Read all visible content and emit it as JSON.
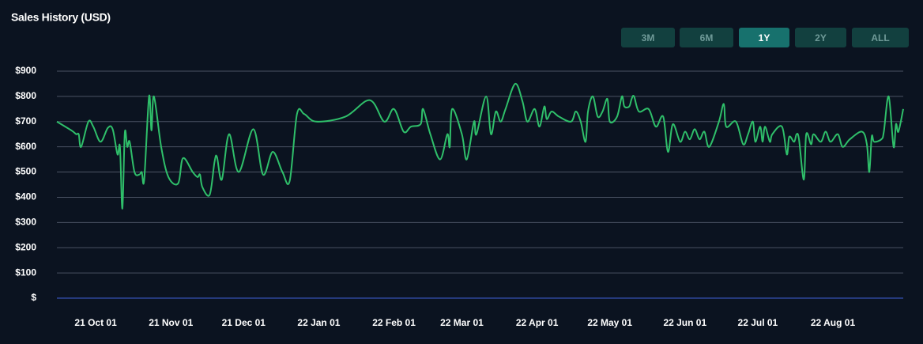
{
  "chart_data": {
    "type": "line",
    "title": "Sales History (USD)",
    "range_buttons": [
      "3M",
      "6M",
      "1Y",
      "2Y",
      "ALL"
    ],
    "selected_range": "1Y",
    "x": [
      "2021-09-15",
      "2021-09-21",
      "2021-09-23",
      "2021-09-24",
      "2021-09-25",
      "2021-09-28",
      "2021-09-30",
      "2021-10-03",
      "2021-10-06",
      "2021-10-08",
      "2021-10-10",
      "2021-10-11",
      "2021-10-12",
      "2021-10-13",
      "2021-10-14",
      "2021-10-15",
      "2021-10-17",
      "2021-10-19",
      "2021-10-20",
      "2021-10-21",
      "2021-10-23",
      "2021-10-24",
      "2021-10-25",
      "2021-10-28",
      "2021-10-31",
      "2021-11-04",
      "2021-11-06",
      "2021-11-10",
      "2021-11-12",
      "2021-11-13",
      "2021-11-14",
      "2021-11-17",
      "2021-11-19",
      "2021-11-20",
      "2021-11-22",
      "2021-11-25",
      "2021-11-29",
      "2021-12-05",
      "2021-12-09",
      "2021-12-13",
      "2021-12-17",
      "2021-12-20",
      "2021-12-23",
      "2021-12-26",
      "2021-12-31",
      "2022-01-12",
      "2022-01-22",
      "2022-01-28",
      "2022-02-01",
      "2022-02-05",
      "2022-02-08",
      "2022-02-12",
      "2022-02-13",
      "2022-02-16",
      "2022-02-20",
      "2022-02-23",
      "2022-02-24",
      "2022-02-25",
      "2022-03-01",
      "2022-03-03",
      "2022-03-06",
      "2022-03-07",
      "2022-03-11",
      "2022-03-13",
      "2022-03-15",
      "2022-03-17",
      "2022-03-19",
      "2022-03-23",
      "2022-03-26",
      "2022-03-28",
      "2022-03-31",
      "2022-04-02",
      "2022-04-04",
      "2022-04-05",
      "2022-04-07",
      "2022-04-10",
      "2022-04-15",
      "2022-04-17",
      "2022-04-19",
      "2022-04-21",
      "2022-04-22",
      "2022-04-24",
      "2022-04-26",
      "2022-04-28",
      "2022-04-30",
      "2022-05-01",
      "2022-05-04",
      "2022-05-06",
      "2022-05-07",
      "2022-05-09",
      "2022-05-10",
      "2022-05-11",
      "2022-05-13",
      "2022-05-17",
      "2022-05-20",
      "2022-05-23",
      "2022-05-25",
      "2022-05-27",
      "2022-05-30",
      "2022-06-01",
      "2022-06-03",
      "2022-06-05",
      "2022-06-07",
      "2022-06-09",
      "2022-06-11",
      "2022-06-15",
      "2022-06-17",
      "2022-06-18",
      "2022-06-22",
      "2022-06-25",
      "2022-06-27",
      "2022-06-29",
      "2022-06-30",
      "2022-07-02",
      "2022-07-03",
      "2022-07-04",
      "2022-07-06",
      "2022-07-07",
      "2022-07-11",
      "2022-07-13",
      "2022-07-14",
      "2022-07-16",
      "2022-07-17",
      "2022-07-18",
      "2022-07-20",
      "2022-07-21",
      "2022-07-23",
      "2022-07-24",
      "2022-07-27",
      "2022-07-29",
      "2022-07-31",
      "2022-08-03",
      "2022-08-05",
      "2022-08-08",
      "2022-08-13",
      "2022-08-15",
      "2022-08-16",
      "2022-08-17",
      "2022-08-18",
      "2022-08-21",
      "2022-08-22",
      "2022-08-24",
      "2022-08-26",
      "2022-08-27",
      "2022-08-28",
      "2022-08-30"
    ],
    "series": [
      {
        "name": "Sales",
        "color": "#2fbf6a",
        "values": [
          700,
          665,
          650,
          650,
          600,
          700,
          680,
          620,
          675,
          670,
          570,
          600,
          355,
          655,
          600,
          620,
          500,
          490,
          500,
          470,
          800,
          665,
          800,
          600,
          480,
          455,
          555,
          500,
          480,
          490,
          440,
          410,
          540,
          560,
          470,
          650,
          500,
          670,
          490,
          580,
          500,
          465,
          730,
          730,
          700,
          720,
          785,
          700,
          750,
          660,
          680,
          690,
          750,
          650,
          550,
          650,
          600,
          750,
          650,
          550,
          700,
          650,
          800,
          650,
          740,
          700,
          750,
          850,
          780,
          700,
          750,
          680,
          760,
          710,
          740,
          720,
          700,
          740,
          700,
          620,
          740,
          800,
          720,
          740,
          790,
          700,
          720,
          800,
          760,
          760,
          790,
          800,
          740,
          750,
          680,
          720,
          580,
          690,
          620,
          660,
          630,
          670,
          630,
          660,
          600,
          700,
          770,
          680,
          700,
          610,
          650,
          700,
          620,
          680,
          620,
          680,
          620,
          650,
          680,
          570,
          640,
          620,
          650,
          630,
          470,
          650,
          610,
          650,
          620,
          660,
          620,
          650,
          600,
          630,
          660,
          610,
          500,
          640,
          620,
          630,
          660,
          800,
          600,
          690,
          660,
          750
        ]
      }
    ],
    "xlim": [
      "2021-09-15",
      "2022-08-30"
    ],
    "xticks": [
      {
        "value": "2021-10-01",
        "label": "21 Oct 01"
      },
      {
        "value": "2021-11-01",
        "label": "21 Nov 01"
      },
      {
        "value": "2021-12-01",
        "label": "21 Dec 01"
      },
      {
        "value": "2022-01-01",
        "label": "22 Jan 01"
      },
      {
        "value": "2022-02-01",
        "label": "22 Feb 01"
      },
      {
        "value": "2022-03-01",
        "label": "22 Mar 01"
      },
      {
        "value": "2022-04-01",
        "label": "22 Apr 01"
      },
      {
        "value": "2022-05-01",
        "label": "22 May 01"
      },
      {
        "value": "2022-06-01",
        "label": "22 Jun 01"
      },
      {
        "value": "2022-07-01",
        "label": "22 Jul 01"
      },
      {
        "value": "2022-08-01",
        "label": "22 Aug 01"
      }
    ],
    "ylim": [
      0,
      900
    ],
    "yticks": [
      {
        "value": 0,
        "label": "$"
      },
      {
        "value": 100,
        "label": "$100"
      },
      {
        "value": 200,
        "label": "$200"
      },
      {
        "value": 300,
        "label": "$300"
      },
      {
        "value": 400,
        "label": "$400"
      },
      {
        "value": 500,
        "label": "$500"
      },
      {
        "value": 600,
        "label": "$600"
      },
      {
        "value": 700,
        "label": "$700"
      },
      {
        "value": 800,
        "label": "$800"
      },
      {
        "value": 900,
        "label": "$900"
      }
    ],
    "grid": true
  }
}
